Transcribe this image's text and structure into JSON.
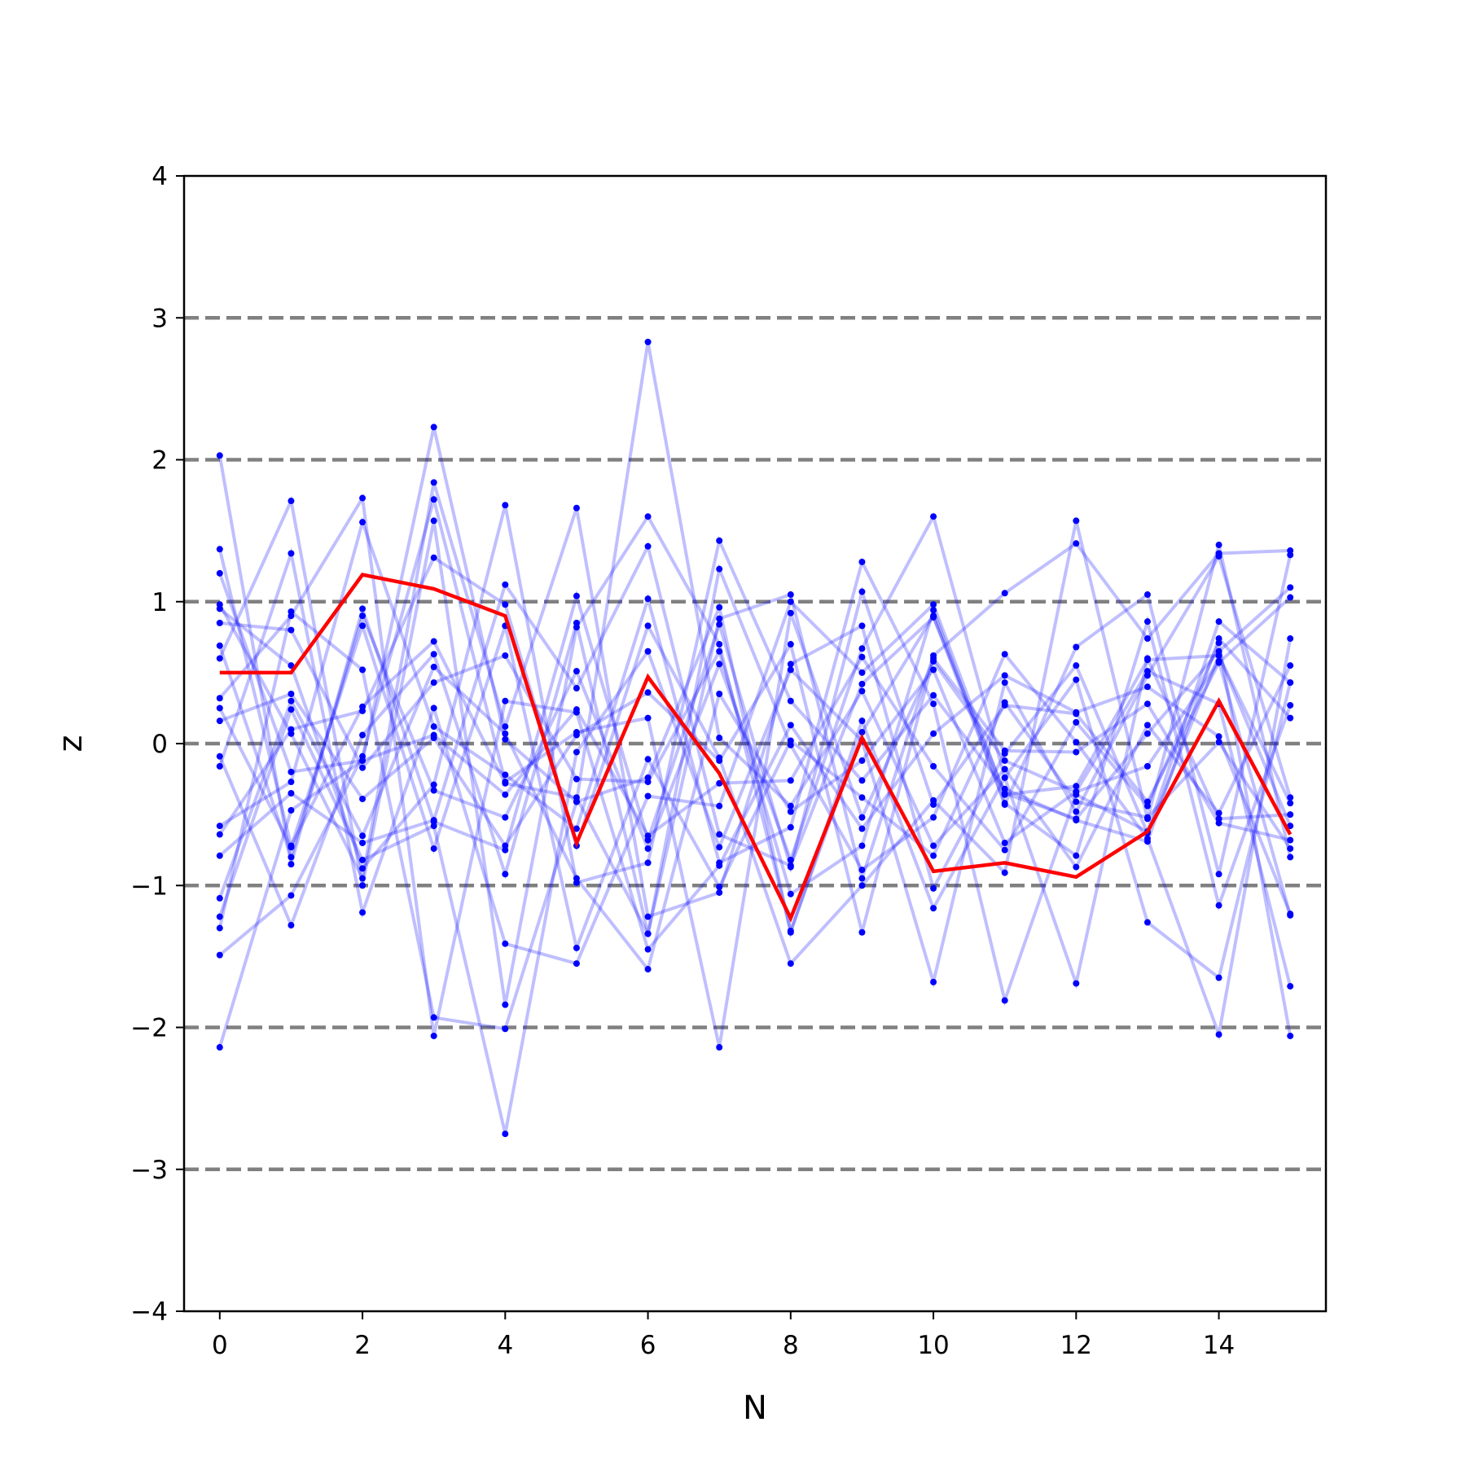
{
  "chart_data": {
    "type": "line",
    "xlabel": "N",
    "ylabel": "z",
    "xlim": [
      -0.5,
      15.5
    ],
    "ylim": [
      -4,
      4
    ],
    "x_ticks": [
      0,
      2,
      4,
      6,
      8,
      10,
      12,
      14
    ],
    "x_tick_labels": [
      "0",
      "2",
      "4",
      "6",
      "8",
      "10",
      "12",
      "14"
    ],
    "y_ticks": [
      -4,
      -3,
      -2,
      -1,
      0,
      1,
      2,
      3,
      4
    ],
    "y_tick_labels": [
      "−4",
      "−3",
      "−2",
      "−1",
      "0",
      "1",
      "2",
      "3",
      "4"
    ],
    "reference_lines": [
      -3,
      -2,
      -1,
      0,
      1,
      2,
      3
    ],
    "reference_line_color": "#808080",
    "background_color": "#0000ff",
    "highlight_color": "#ff0000",
    "x": [
      0,
      1,
      2,
      3,
      4,
      5,
      6,
      7,
      8,
      9,
      10,
      11,
      12,
      13,
      14,
      15
    ],
    "highlight_series": [
      0.5,
      0.5,
      1.19,
      1.09,
      0.9,
      -0.7,
      0.47,
      -0.21,
      -1.23,
      0.04,
      -0.9,
      -0.84,
      -0.94,
      -0.62,
      0.3,
      -0.64
    ],
    "background_series": [
      [
        2.03,
        -0.85,
        0.95,
        -0.55,
        -0.75,
        1.04,
        -0.68,
        0.84,
        -0.87,
        1.07,
        -0.43,
        0.27,
        0.21,
        -0.41,
        0.57,
        1.03
      ],
      [
        1.37,
        -0.72,
        0.26,
        0.72,
        -0.28,
        -0.38,
        -1.34,
        0.88,
        1.05,
        -0.95,
        0.62,
        1.06,
        1.41,
        0.74,
        1.34,
        1.36
      ],
      [
        1.2,
        -0.2,
        -0.12,
        2.23,
        0.03,
        -0.41,
        2.83,
        0.04,
        -0.44,
        0.37,
        -0.72,
        -0.18,
        -0.87,
        0.13,
        -0.49,
        0.55
      ],
      [
        0.98,
        0.07,
        -0.95,
        1.84,
        0.12,
        1.66,
        -1.22,
        -1.05,
        0.56,
        0.83,
        -1.02,
        -0.07,
        0.55,
        -0.63,
        0.62,
        -0.58
      ],
      [
        0.95,
        0.55,
        -0.88,
        -0.29,
        1.68,
        -0.98,
        -0.84,
        1.43,
        0.3,
        -0.26,
        0.34,
        -0.32,
        -0.54,
        -0.69,
        0.74,
        0.18
      ],
      [
        0.69,
        -0.8,
        0.9,
        -0.33,
        -0.52,
        0.51,
        -0.74,
        0.56,
        -0.82,
        0.67,
        1.6,
        -0.24,
        -1.69,
        0.6,
        -0.53,
        -0.5
      ],
      [
        0.6,
        1.71,
        -1.0,
        1.57,
        -1.84,
        0.82,
        1.6,
        0.7,
        -1.32,
        0.08,
        0.9,
        -0.43,
        0.68,
        1.05,
        -0.92,
        1.33
      ],
      [
        0.32,
        0.9,
        1.73,
        -2.06,
        0.3,
        0.22,
        -1.45,
        -0.86,
        0.13,
        -0.6,
        0.07,
        0.48,
        0.22,
        0.4,
        0.05,
        -1.2
      ],
      [
        0.25,
        -0.73,
        0.83,
        -0.74,
        0.83,
        -1.44,
        -0.11,
        -1.01,
        0.02,
        -0.38,
        -0.79,
        0.29,
        -0.41,
        -0.52,
        0.01,
        -0.74
      ],
      [
        0.16,
        0.35,
        -0.39,
        0.04,
        -0.72,
        0.06,
        0.36,
        -0.12,
        0.7,
        -1.33,
        0.6,
        -0.05,
        -0.06,
        0.28,
        -0.56,
        -0.68
      ],
      [
        -0.09,
        -1.28,
        0.06,
        0.63,
        -0.92,
        0.85,
        -1.34,
        1.23,
        -0.01,
        -0.89,
        -0.52,
        0.63,
        0.01,
        -0.67,
        -2.05,
        0.74
      ],
      [
        -0.16,
        1.34,
        -1.19,
        0.25,
        -1.41,
        -1.55,
        -0.37,
        -0.44,
        1.0,
        0.5,
        0.98,
        -0.36,
        -0.3,
        0.59,
        0.62,
        -0.42
      ],
      [
        -0.58,
        -0.27,
        1.56,
        0.12,
        -0.22,
        -0.6,
        1.02,
        -0.84,
        -0.59,
        1.28,
        0.28,
        -1.81,
        -0.36,
        -0.62,
        0.86,
        0.43
      ],
      [
        -0.64,
        0.1,
        0.23,
        1.31,
        0.98,
        -0.72,
        0.83,
        -0.1,
        -1.55,
        -1.0,
        -0.4,
        -0.91,
        1.57,
        -0.53,
        1.4,
        -0.8
      ],
      [
        -0.79,
        -0.35,
        -0.7,
        -0.54,
        1.12,
        0.39,
        1.39,
        -0.64,
        -0.86,
        0.42,
        0.89,
        -0.35,
        -0.53,
        0.07,
        0.65,
        1.1
      ],
      [
        -1.09,
        0.3,
        -0.65,
        0.54,
        0.07,
        -0.95,
        -1.59,
        0.35,
        -0.48,
        -0.12,
        0.52,
        -0.7,
        -0.34,
        -0.16,
        0.58,
        -1.21
      ],
      [
        -1.22,
        0.24,
        -0.82,
        -0.58,
        -2.75,
        -0.06,
        0.65,
        -0.73,
        0.52,
        0.02,
        -1.68,
        0.43,
        -0.48,
        0.48,
        1.32,
        -0.38
      ],
      [
        -1.3,
        0.93,
        0.52,
        -1.93,
        -2.01,
        -0.41,
        -0.24,
        0.96,
        -1.33,
        0.16,
        -1.16,
        -0.24,
        0.45,
        -1.26,
        -1.65,
        0.43
      ],
      [
        -1.49,
        -1.07,
        -0.09,
        1.72,
        -0.27,
        0.08,
        0.18,
        -2.14,
        0.92,
        -0.52,
        0.58,
        -0.12,
        -0.34,
        0.51,
        0.28,
        -1.71
      ],
      [
        -2.14,
        -0.47,
        -0.12,
        0.06,
        -0.36,
        0.24,
        -0.65,
        -0.28,
        -0.26,
        0.61,
        -0.16,
        -0.75,
        0.15,
        -0.44,
        0.71,
        -2.06
      ],
      [
        0.85,
        0.8,
        -0.17,
        0.43,
        0.62,
        -0.25,
        -0.27,
        0.65,
        -1.06,
        -0.72,
        0.94,
        -0.42,
        -0.79,
        0.86,
        -1.14,
        0.27
      ]
    ]
  }
}
